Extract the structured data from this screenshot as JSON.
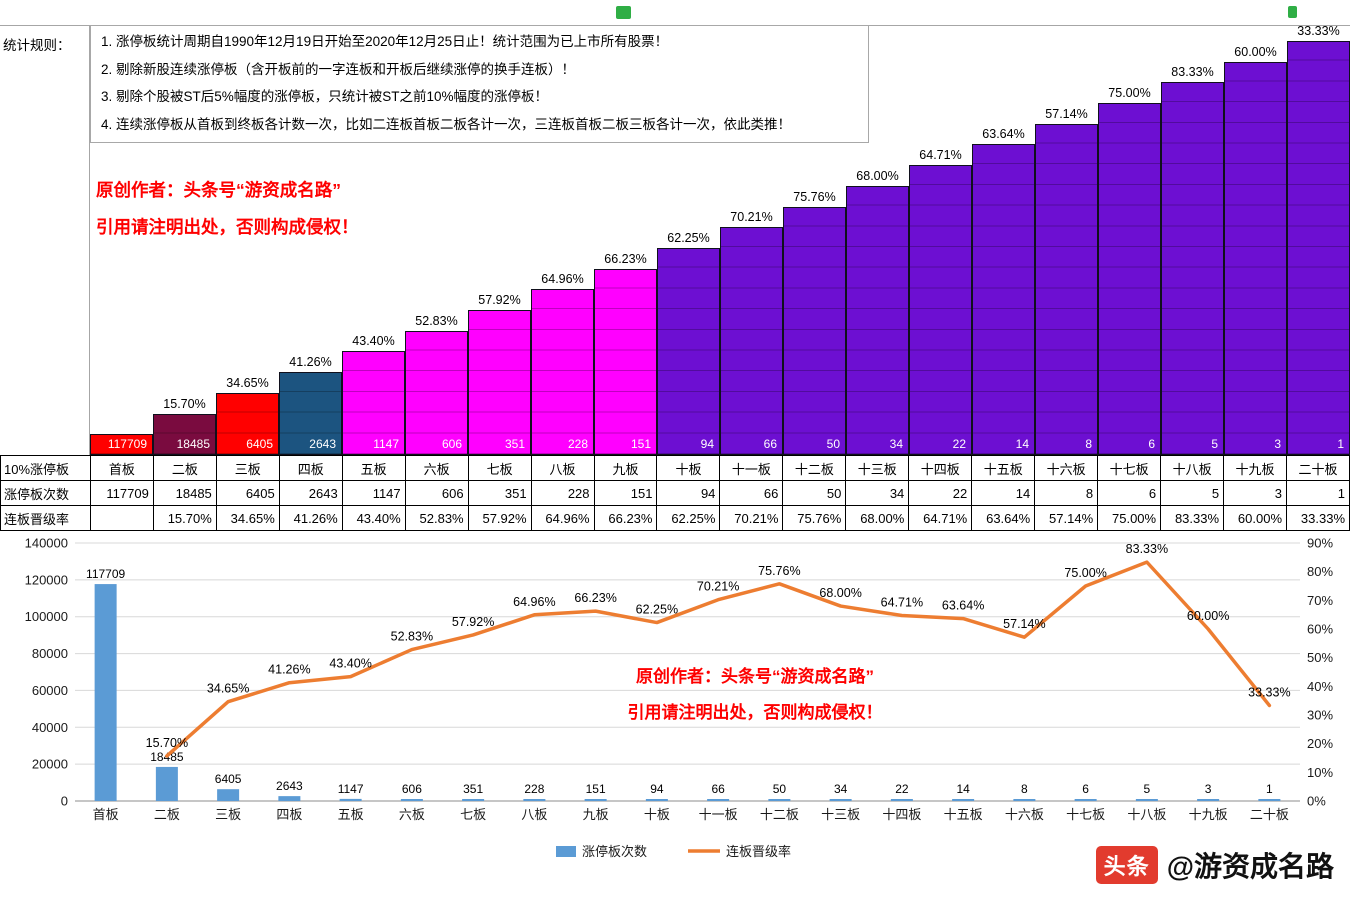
{
  "rules": {
    "label": "统计规则：",
    "lines": [
      "1. 涨停板统计周期自1990年12月19日开始至2020年12月25日止！统计范围为已上市所有股票！",
      "2. 剔除新股连续涨停板（含开板前的一字连板和开板后继续涨停的换手连板）！",
      "3. 剔除个股被ST后5%幅度的涨停板，只统计被ST之前10%幅度的涨停板！",
      "4. 连续涨停板从首板到终板各计数一次，比如二连板首板二板各计一次，三连板首板二板三板各计一次，依此类推！"
    ]
  },
  "watermark": {
    "line1": "原创作者：头条号“游资成名路”",
    "line2": "引用请注明出处，否则构成侵权！"
  },
  "staircase": {
    "colors": [
      "#ff0000",
      "#7a0b3f",
      "#ff0000",
      "#1c5480",
      "#ff00ff",
      "#ff00ff",
      "#ff00ff",
      "#ff00ff",
      "#ff00ff",
      "#6d0fd2",
      "#6d0fd2",
      "#6d0fd2",
      "#6d0fd2",
      "#6d0fd2",
      "#6d0fd2",
      "#6d0fd2",
      "#6d0fd2",
      "#6d0fd2",
      "#6d0fd2",
      "#6d0fd2"
    ]
  },
  "table": {
    "row_headers": [
      "10%涨停板",
      "涨停板次数",
      "连板晋级率"
    ],
    "boards": [
      "首板",
      "二板",
      "三板",
      "四板",
      "五板",
      "六板",
      "七板",
      "八板",
      "九板",
      "十板",
      "十一板",
      "十二板",
      "十三板",
      "十四板",
      "十五板",
      "十六板",
      "十七板",
      "十八板",
      "十九板",
      "二十板"
    ],
    "counts": [
      117709,
      18485,
      6405,
      2643,
      1147,
      606,
      351,
      228,
      151,
      94,
      66,
      50,
      34,
      22,
      14,
      8,
      6,
      5,
      3,
      1
    ],
    "rates": [
      "",
      "15.70%",
      "34.65%",
      "41.26%",
      "43.40%",
      "52.83%",
      "57.92%",
      "64.96%",
      "66.23%",
      "62.25%",
      "70.21%",
      "75.76%",
      "68.00%",
      "64.71%",
      "63.64%",
      "57.14%",
      "75.00%",
      "83.33%",
      "60.00%",
      "33.33%"
    ]
  },
  "chart_data": {
    "type": "bar",
    "title": "",
    "categories": [
      "首板",
      "二板",
      "三板",
      "四板",
      "五板",
      "六板",
      "七板",
      "八板",
      "九板",
      "十板",
      "十一板",
      "十二板",
      "十三板",
      "十四板",
      "十五板",
      "十六板",
      "十七板",
      "十八板",
      "十九板",
      "二十板"
    ],
    "series": [
      {
        "name": "涨停板次数",
        "type": "bar",
        "axis": "left",
        "color": "#5B9BD5",
        "values": [
          117709,
          18485,
          6405,
          2643,
          1147,
          606,
          351,
          228,
          151,
          94,
          66,
          50,
          34,
          22,
          14,
          8,
          6,
          5,
          3,
          1
        ]
      },
      {
        "name": "连板晋级率",
        "type": "line",
        "axis": "right",
        "color": "#ED7D31",
        "values": [
          null,
          15.7,
          34.65,
          41.26,
          43.4,
          52.83,
          57.92,
          64.96,
          66.23,
          62.25,
          70.21,
          75.76,
          68.0,
          64.71,
          63.64,
          57.14,
          75.0,
          83.33,
          60.0,
          33.33
        ],
        "labels": [
          "",
          "15.70%",
          "34.65%",
          "41.26%",
          "43.40%",
          "52.83%",
          "57.92%",
          "64.96%",
          "66.23%",
          "62.25%",
          "70.21%",
          "75.76%",
          "68.00%",
          "64.71%",
          "63.64%",
          "57.14%",
          "75.00%",
          "83.33%",
          "60.00%",
          "33.33%"
        ]
      }
    ],
    "left_axis": {
      "min": 0,
      "max": 140000,
      "step": 20000,
      "ticks": [
        "0",
        "20000",
        "40000",
        "60000",
        "80000",
        "100000",
        "120000",
        "140000"
      ]
    },
    "right_axis": {
      "min": 0,
      "max": 90,
      "step": 10,
      "ticks": [
        "0%",
        "10%",
        "20%",
        "30%",
        "40%",
        "50%",
        "60%",
        "70%",
        "80%",
        "90%"
      ]
    },
    "grid": true,
    "legend_position": "bottom"
  },
  "footer": {
    "logo_text": "头条",
    "handle": "@游资成名路"
  }
}
